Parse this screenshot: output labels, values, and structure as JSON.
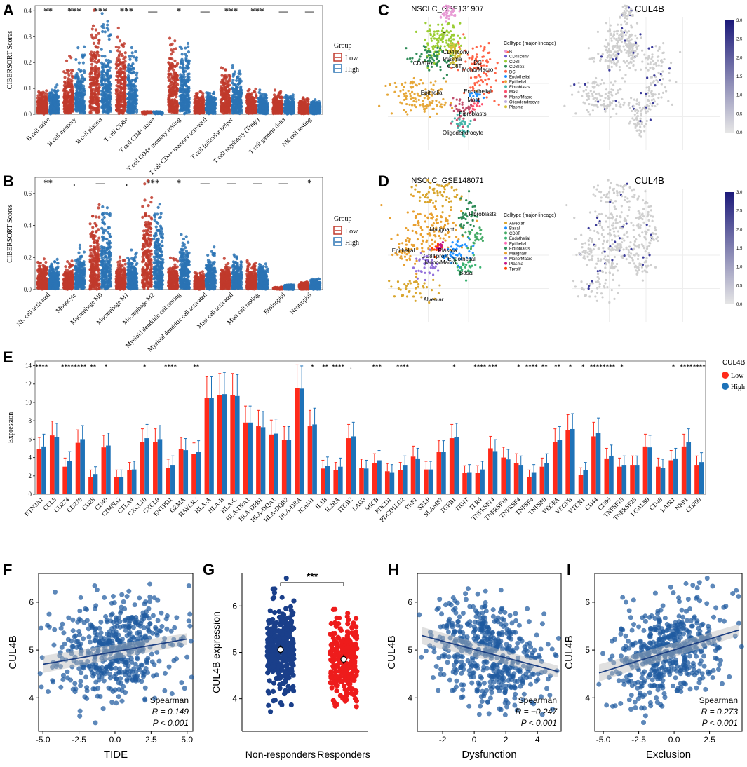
{
  "panels": {
    "A": "A",
    "B": "B",
    "C": "C",
    "D": "D",
    "E": "E",
    "F": "F",
    "G": "G",
    "H": "H",
    "I": "I"
  },
  "colors": {
    "low": "#c0392b",
    "high": "#2a73b4",
    "low_bar": "#ff2a1a",
    "high_bar": "#1e72b8",
    "scatter": "#1f5aa0",
    "nonresp": "#1a3f8a",
    "resp": "#ee1c1c"
  },
  "chart_data": [
    {
      "id": "A",
      "type": "scatter",
      "title": "",
      "ylabel": "CIBERSORT Scores",
      "xlabel": "",
      "ylim": [
        0,
        0.42
      ],
      "yticks": [
        "0.0",
        "0.1",
        "0.2",
        "0.3",
        "0.4"
      ],
      "legend": {
        "title": "Group",
        "entries": [
          "Low",
          "High"
        ],
        "position": "right"
      },
      "categories": [
        "B cell naive",
        "B cell memory",
        "B cell plasma",
        "T cell CD8+",
        "T cell CD4+ naive",
        "T cell CD4+ memory resting",
        "T cell CD4+ memory activated",
        "T cell follicular helper",
        "T cell regulatory (Tregs)",
        "T cell gamma delta",
        "NK cell resting"
      ],
      "significance": [
        "**",
        "***",
        "***",
        "***",
        "—",
        "*",
        "—",
        "***",
        "***",
        "—",
        "—"
      ],
      "series": [
        {
          "name": "Low",
          "max": [
            0.11,
            0.24,
            0.41,
            0.38,
            0.01,
            0.3,
            0.1,
            0.19,
            0.11,
            0.1,
            0.07
          ]
        },
        {
          "name": "High",
          "max": [
            0.12,
            0.28,
            0.4,
            0.3,
            0.01,
            0.31,
            0.1,
            0.2,
            0.1,
            0.09,
            0.06
          ]
        }
      ]
    },
    {
      "id": "B",
      "type": "scatter",
      "title": "",
      "ylabel": "CIBERSORT Scores",
      "xlabel": "",
      "ylim": [
        0,
        0.7
      ],
      "yticks": [
        "0.0",
        "0.2",
        "0.4",
        "0.6"
      ],
      "legend": {
        "title": "Group",
        "entries": [
          "Low",
          "High"
        ],
        "position": "right"
      },
      "categories": [
        "NK cell activated",
        "Monocyte",
        "Macrophage M0",
        "Macrophage M1",
        "Macrophage M2",
        "Myeloid dendritic cell resting",
        "Myeloid dendritic cell activated",
        "Mast cell activated",
        "Mast cell resting",
        "Eosinophil",
        "Neutrophil"
      ],
      "significance": [
        "**",
        ".",
        "—",
        ".",
        "***",
        "*",
        "—",
        "—",
        "—",
        "—",
        "*"
      ],
      "series": [
        {
          "name": "Low",
          "max": [
            0.2,
            0.18,
            0.53,
            0.21,
            0.68,
            0.22,
            0.12,
            0.2,
            0.19,
            0.02,
            0.05
          ]
        },
        {
          "name": "High",
          "max": [
            0.21,
            0.3,
            0.56,
            0.25,
            0.56,
            0.35,
            0.27,
            0.22,
            0.2,
            0.03,
            0.08
          ]
        }
      ]
    },
    {
      "id": "E",
      "type": "bar",
      "title": "",
      "ylabel": "Expression",
      "xlabel": "",
      "ylim": [
        0,
        14.5
      ],
      "yticks": [
        "0",
        "2",
        "4",
        "6",
        "8",
        "10",
        "12",
        "14"
      ],
      "legend": {
        "title": "CUL4B",
        "entries": [
          "Low",
          "High"
        ],
        "position": "right"
      },
      "categories": [
        "BTN3A1",
        "CCL5",
        "CD274",
        "CD276",
        "CD28",
        "CD40",
        "CD40LG",
        "CTLA4",
        "CXCL10",
        "CXCL9",
        "ENTPD1",
        "GZMA",
        "HAVCR2",
        "HLA-A",
        "HLA-B",
        "HLA-C",
        "HLA-DPA1",
        "HLA-DPB1",
        "HLA-DQA1",
        "HLA-DQB2",
        "HLA-DRA",
        "ICAM1",
        "IL1B",
        "IL2RA",
        "ITGB2",
        "LAG3",
        "MICB",
        "PDCD1",
        "PDCD1LG2",
        "PRF1",
        "SELP",
        "SLAMF7",
        "TGFB1",
        "TIGIT",
        "TLR4",
        "TNFRSF14",
        "TNFRSF18",
        "TNFRSF4",
        "TNFSF4",
        "TNFSF9",
        "VEGFA",
        "VEGFB",
        "VTCN1",
        "CD44",
        "CD86",
        "TNFSF15",
        "TNFRSF25",
        "LGALS9",
        "CD48",
        "LAIR1",
        "NRP1",
        "CD200"
      ],
      "significance": [
        "****",
        "",
        "****",
        "****",
        "**",
        "*",
        "-",
        "-",
        "*",
        "-",
        "****",
        "-",
        "**",
        "-",
        "-",
        "-",
        "-",
        "-",
        "-",
        "-",
        "-",
        "*",
        "**",
        "****",
        ".",
        "-",
        "***",
        "-",
        "****",
        "-",
        "-",
        "-",
        "*",
        "-",
        "****",
        "***",
        "-",
        "*",
        "****",
        "**",
        "**",
        "*",
        "*",
        "****",
        "****",
        "*",
        "-",
        "-",
        "-",
        "*",
        "****",
        "****"
      ],
      "series": [
        {
          "name": "Low",
          "values": [
            4.9,
            6.4,
            3.0,
            5.6,
            1.9,
            5.1,
            1.9,
            2.6,
            5.7,
            5.7,
            2.9,
            4.9,
            4.4,
            10.5,
            10.8,
            10.8,
            7.8,
            7.4,
            6.5,
            5.9,
            11.6,
            7.4,
            2.8,
            2.6,
            6.1,
            2.9,
            3.4,
            2.5,
            2.6,
            4.1,
            2.7,
            4.6,
            6.1,
            2.3,
            2.3,
            5.0,
            4.0,
            3.4,
            1.9,
            3.0,
            5.7,
            7.0,
            2.1,
            6.3,
            3.9,
            3.0,
            3.2,
            5.2,
            3.0,
            3.7,
            5.2,
            3.2
          ]
        },
        {
          "name": "High",
          "values": [
            5.2,
            6.2,
            3.6,
            6.0,
            2.2,
            5.3,
            1.9,
            2.7,
            6.1,
            6.0,
            3.2,
            4.8,
            4.6,
            10.5,
            10.9,
            10.7,
            7.8,
            7.3,
            6.6,
            5.9,
            11.5,
            7.6,
            3.1,
            3.0,
            6.3,
            2.8,
            3.7,
            2.4,
            3.2,
            3.9,
            2.7,
            4.6,
            6.2,
            2.4,
            2.7,
            4.7,
            3.8,
            3.2,
            2.4,
            3.4,
            5.9,
            7.1,
            2.6,
            6.7,
            4.2,
            3.2,
            3.2,
            5.1,
            2.9,
            3.9,
            5.7,
            3.5
          ]
        }
      ]
    },
    {
      "id": "F",
      "type": "scatter",
      "xlabel": "TIDE",
      "ylabel": "CUL4B",
      "xlim": [
        -5.3,
        5.4
      ],
      "ylim": [
        3.3,
        6.6
      ],
      "xticks": [
        "-5.0",
        "-2.5",
        "0.0",
        "2.5",
        "5.0"
      ],
      "yticks": [
        "4",
        "5",
        "6"
      ],
      "method": "Spearman",
      "r_label": "R = 0.149",
      "p_label": "P < 0.001",
      "fit": {
        "x": [
          -5.0,
          5.0
        ],
        "y": [
          4.7,
          5.23
        ]
      }
    },
    {
      "id": "G",
      "type": "scatter",
      "xlabel": "",
      "ylabel": "CUL4B expression",
      "ylim": [
        3.3,
        6.7
      ],
      "yticks": [
        "4",
        "5",
        "6"
      ],
      "categories": [
        "Non-responders",
        "Responders"
      ],
      "significance": "***",
      "means": [
        5.06,
        4.85
      ],
      "ranges": [
        [
          3.7,
          6.6
        ],
        [
          3.4,
          6.3
        ]
      ]
    },
    {
      "id": "H",
      "type": "scatter",
      "xlabel": "Dysfunction",
      "ylabel": "CUL4B",
      "xlim": [
        -3.6,
        5.5
      ],
      "ylim": [
        3.3,
        6.6
      ],
      "xticks": [
        "-2",
        "0",
        "2",
        "4"
      ],
      "yticks": [
        "4",
        "5",
        "6"
      ],
      "method": "Spearman",
      "r_label": "R = −0.247",
      "p_label": "P < 0.001",
      "fit": {
        "x": [
          -3.3,
          5.3
        ],
        "y": [
          5.3,
          4.55
        ]
      }
    },
    {
      "id": "I",
      "type": "scatter",
      "xlabel": "Exclusion",
      "ylabel": "CUL4B",
      "xlim": [
        -5.6,
        4.8
      ],
      "ylim": [
        3.3,
        6.6
      ],
      "xticks": [
        "-5.0",
        "-2.5",
        "0.0",
        "2.5"
      ],
      "yticks": [
        "4",
        "5",
        "6"
      ],
      "method": "Spearman",
      "r_label": "R = 0.273",
      "p_label": "P < 0.001",
      "fit": {
        "x": [
          -5.3,
          4.6
        ],
        "y": [
          4.52,
          5.42
        ]
      }
    }
  ],
  "umaps": [
    {
      "id": "C",
      "title": "NSCLC_GSE131907",
      "feature_title": "CUL4B",
      "legend_title": "Celltype (major-lineage)",
      "celltypes": [
        "B",
        "CD4Tconv",
        "CD8T",
        "CD8Tex",
        "DC",
        "Endothelial",
        "Epithelial",
        "Fibroblasts",
        "Mast",
        "Mono/Macro",
        "Oligodendrocyte",
        "Plasma"
      ],
      "celltype_colors": [
        "#e89bd5",
        "#6a5acd",
        "#9acd32",
        "#2e8b57",
        "#ff6347",
        "#1e90ff",
        "#e6a83a",
        "#46b5a9",
        "#ff4f6d",
        "#c0506e",
        "#bfb0e0",
        "#d4c23b"
      ],
      "labels": [
        "B",
        "CD4Tconv",
        "Plasma",
        "CD8Tex",
        "CD8T",
        "DC",
        "Mono/Macro",
        "Epithelial",
        "Endothelial",
        "Mast",
        "Fibroblasts",
        "Oligodendrocyte"
      ],
      "colorbar_ticks": [
        "0.0",
        "0.5",
        "1.0",
        "1.5",
        "2.0",
        "2.5",
        "3.0"
      ]
    },
    {
      "id": "D",
      "title": "NSCLC_GSE148071",
      "feature_title": "CUL4B",
      "legend_title": "Celltype (major-lineage)",
      "celltypes": [
        "Alveolar",
        "Basal",
        "CD8T",
        "Endothelial",
        "Epithelial",
        "Fibroblasts",
        "Malignant",
        "Mono/Macro",
        "Plasma",
        "Tprolif"
      ],
      "celltype_colors": [
        "#d9a62e",
        "#1e90ff",
        "#44aa66",
        "#3cb371",
        "#ff69b4",
        "#2e8b57",
        "#e8a030",
        "#9370db",
        "#c71585",
        "#ff4500"
      ],
      "labels": [
        "Malignant",
        "Fibroblasts",
        "Epithelial",
        "Plasma",
        "CD8T",
        "Tprolif",
        "Mono/Macro",
        "Endothelial",
        "Basal",
        "Alveolar"
      ],
      "colorbar_ticks": [
        "0.0",
        "0.5",
        "1.0",
        "1.5",
        "2.0",
        "2.5",
        "3.0"
      ]
    }
  ]
}
